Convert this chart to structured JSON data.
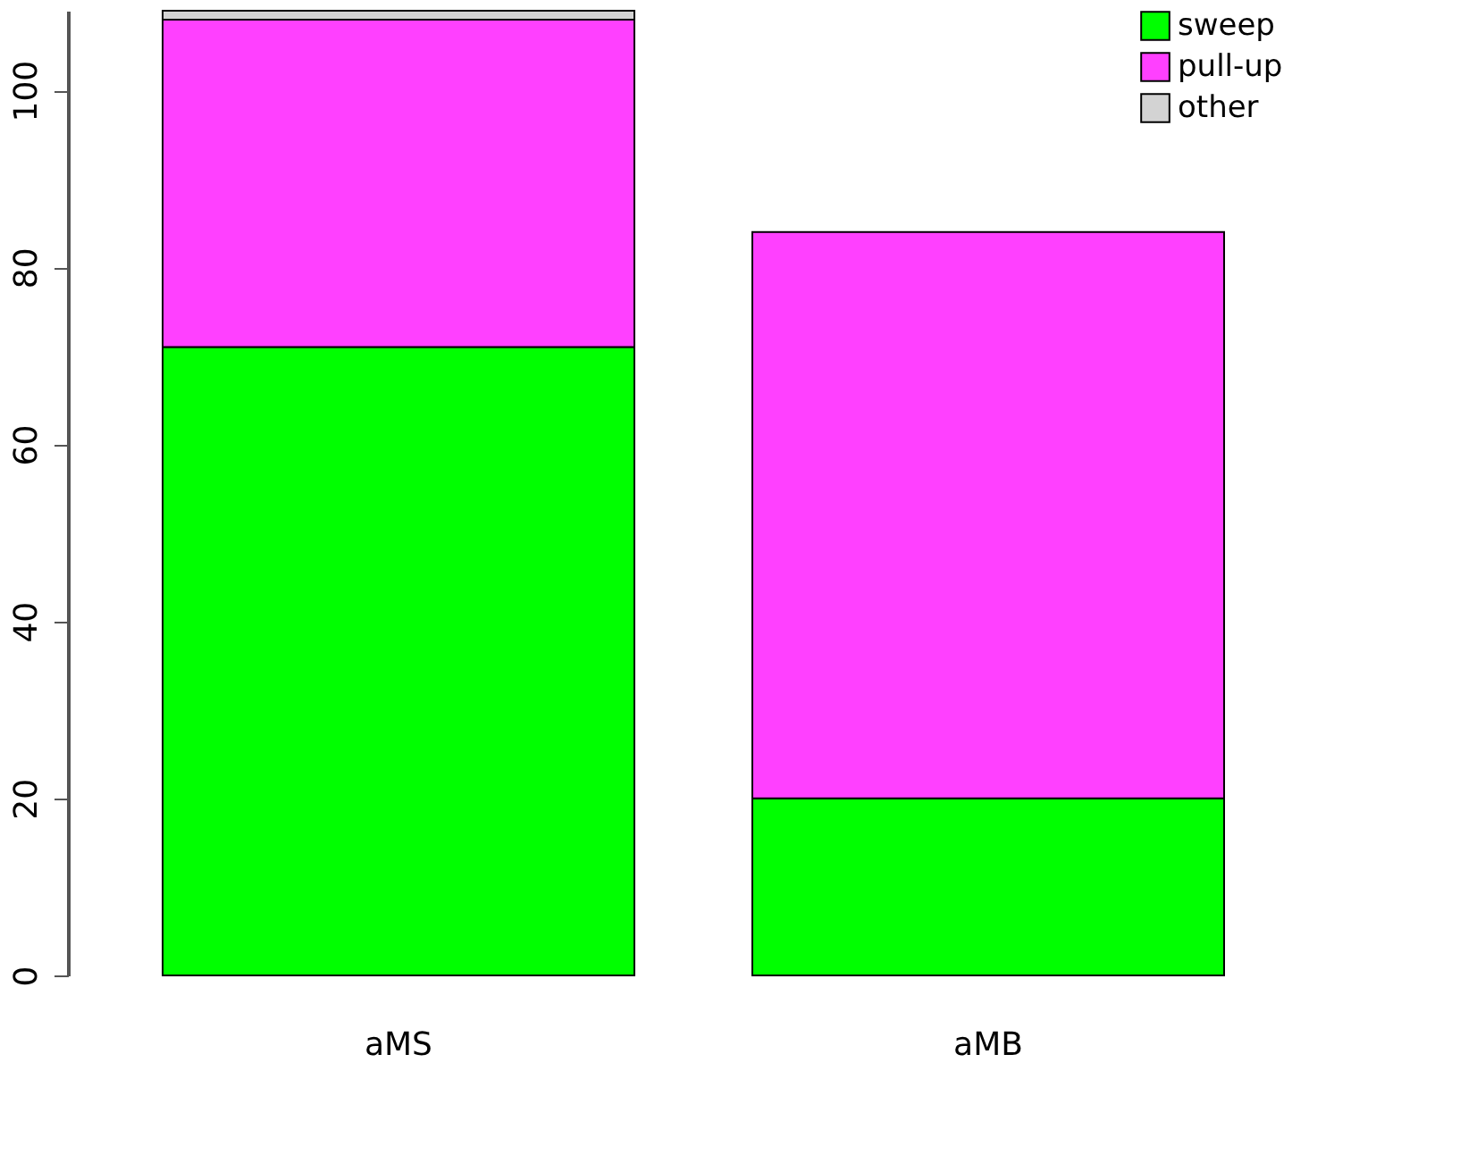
{
  "chart_data": {
    "type": "bar",
    "stacked": true,
    "categories": [
      "aMS",
      "aMB"
    ],
    "series": [
      {
        "name": "sweep",
        "color": "#00ff00",
        "values": [
          71,
          20
        ]
      },
      {
        "name": "pull-up",
        "color": "#ff40ff",
        "values": [
          37,
          64
        ]
      },
      {
        "name": "other",
        "color": "#d3d3d3",
        "values": [
          1,
          null
        ]
      }
    ],
    "ylim": [
      0,
      109
    ],
    "yticks": [
      0,
      20,
      40,
      60,
      80,
      100
    ],
    "grid": false,
    "legend": "top right"
  }
}
